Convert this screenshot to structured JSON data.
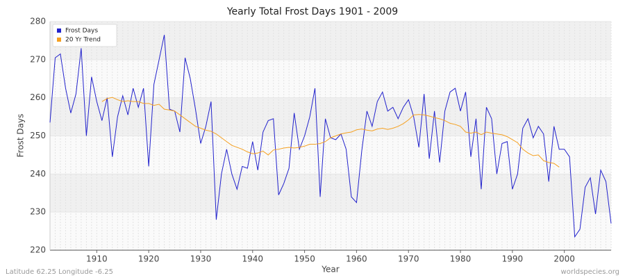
{
  "chart_data": {
    "type": "line",
    "title": "Yearly Total Frost Days 1901 - 2009",
    "x_label": "Year",
    "y_label": "Frost Days",
    "footer_left": "Latitude 62.25 Longitude -6.25",
    "footer_right": "worldspecies.org",
    "x": [
      1901,
      1902,
      1903,
      1904,
      1905,
      1906,
      1907,
      1908,
      1909,
      1910,
      1911,
      1912,
      1913,
      1914,
      1915,
      1916,
      1917,
      1918,
      1919,
      1920,
      1921,
      1922,
      1923,
      1924,
      1925,
      1926,
      1927,
      1928,
      1929,
      1930,
      1931,
      1932,
      1933,
      1934,
      1935,
      1936,
      1937,
      1938,
      1939,
      1940,
      1941,
      1942,
      1943,
      1944,
      1945,
      1946,
      1947,
      1948,
      1949,
      1950,
      1951,
      1952,
      1953,
      1954,
      1955,
      1956,
      1957,
      1958,
      1959,
      1960,
      1961,
      1962,
      1963,
      1964,
      1965,
      1966,
      1967,
      1968,
      1969,
      1970,
      1971,
      1972,
      1973,
      1974,
      1975,
      1976,
      1977,
      1978,
      1979,
      1980,
      1981,
      1982,
      1983,
      1984,
      1985,
      1986,
      1987,
      1988,
      1989,
      1990,
      1991,
      1992,
      1993,
      1994,
      1995,
      1996,
      1997,
      1998,
      1999,
      2000,
      2001,
      2002,
      2003,
      2004,
      2005,
      2006,
      2007,
      2008,
      2009
    ],
    "series": [
      {
        "name": "Frost Days",
        "color": "#2222cc",
        "values": [
          253.5,
          270.5,
          271.5,
          262.5,
          256,
          261,
          273,
          250,
          265.5,
          259,
          254,
          260,
          244.5,
          255,
          260.5,
          255.5,
          262.5,
          257.5,
          262.5,
          242,
          263.5,
          270,
          276.5,
          257,
          256.5,
          251,
          270.5,
          265,
          257,
          248,
          252.5,
          259,
          228,
          240,
          246.5,
          240,
          236,
          242,
          241.5,
          248.5,
          241,
          251,
          254,
          254.5,
          234.5,
          237.5,
          241.5,
          256,
          246.5,
          250,
          255,
          262.5,
          234,
          254.5,
          249.5,
          249,
          250.5,
          246.5,
          234,
          232.5,
          246,
          256.5,
          252.5,
          259,
          261.5,
          256.5,
          257.5,
          254.5,
          257.5,
          259.5,
          255,
          247,
          261,
          244,
          256.5,
          243,
          256.5,
          261.5,
          262.5,
          256.5,
          261.5,
          244.5,
          254.5,
          236,
          257.5,
          254.5,
          240,
          248,
          248.5,
          236,
          240,
          252,
          254.5,
          249.5,
          252.5,
          250.5,
          238,
          252.5,
          246.5,
          246.5,
          244.5,
          223.5,
          225.5,
          236.5,
          239,
          229.5,
          241,
          238,
          227
        ]
      },
      {
        "name": "20 Yr Trend",
        "color": "#f5a020",
        "values": [
          null,
          null,
          null,
          null,
          null,
          null,
          null,
          null,
          null,
          null,
          259,
          259.8,
          260.1,
          259.5,
          259,
          259.2,
          259,
          259,
          258.5,
          258.5,
          258,
          258.3,
          257,
          256.8,
          256.5,
          255.5,
          254.5,
          253.5,
          252.5,
          252,
          251.5,
          251.2,
          250.5,
          249.5,
          248.5,
          247.5,
          247,
          246.5,
          245.8,
          245.3,
          245.5,
          246,
          245,
          246.3,
          246.5,
          246.8,
          247,
          246.8,
          247,
          247.3,
          247.8,
          247.8,
          248,
          248.5,
          249.5,
          250,
          250.5,
          250.8,
          251,
          251.6,
          251.8,
          251.5,
          251.3,
          251.8,
          252,
          251.7,
          252,
          252.5,
          253.2,
          254.2,
          255.5,
          255.6,
          255.5,
          255.2,
          254.8,
          254.5,
          254,
          253.3,
          253,
          252.5,
          251,
          250.7,
          251,
          250.3,
          251,
          250.7,
          250.5,
          250.3,
          249.8,
          249,
          248.2,
          246.5,
          245.5,
          244.8,
          245,
          243.5,
          243,
          242.8,
          241.8,
          null,
          null,
          null,
          null,
          null,
          null,
          null,
          null,
          null,
          null
        ]
      }
    ],
    "xlim": [
      1901,
      2009
    ],
    "xticks": [
      1910,
      1920,
      1930,
      1940,
      1950,
      1960,
      1970,
      1980,
      1990,
      2000
    ],
    "ylim": [
      220,
      280
    ],
    "yticks": [
      220,
      230,
      240,
      250,
      260,
      270,
      280
    ],
    "grid": true,
    "legend": "upper-left"
  }
}
